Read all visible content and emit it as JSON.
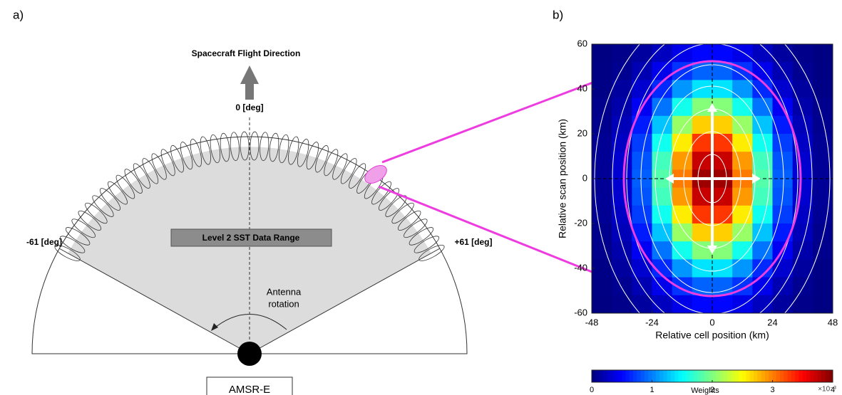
{
  "panel_a": {
    "label": "a)",
    "flight_direction": "Spacecraft Flight Direction",
    "zero": "0 [deg]",
    "left": "-61 [deg]",
    "right": "+61 [deg]",
    "range": "Level 2 SST Data Range",
    "rotation": [
      "Antenna",
      "rotation"
    ],
    "instrument": "AMSR-E"
  },
  "chart_data": {
    "type": "heatmap",
    "label": "b)",
    "x_label": "Relative cell position (km)",
    "y_label": "Relative scan position (km)",
    "x": [
      -44,
      -36,
      -28,
      -20,
      -12,
      -4,
      4,
      12,
      20,
      28,
      36,
      44
    ],
    "y": [
      56,
      48,
      40,
      32,
      24,
      16,
      8,
      0,
      -8,
      -16,
      -24,
      -32,
      -40,
      -48,
      -56
    ],
    "values": [
      [
        0.01,
        0.04,
        0.12,
        0.25,
        0.41,
        0.52,
        0.52,
        0.41,
        0.25,
        0.12,
        0.04,
        0.01
      ],
      [
        0.02,
        0.07,
        0.2,
        0.42,
        0.7,
        0.89,
        0.89,
        0.7,
        0.42,
        0.2,
        0.07,
        0.02
      ],
      [
        0.03,
        0.12,
        0.31,
        0.66,
        1.09,
        1.4,
        1.4,
        1.09,
        0.66,
        0.31,
        0.12,
        0.03
      ],
      [
        0.05,
        0.17,
        0.45,
        0.95,
        1.57,
        2.02,
        2.02,
        1.57,
        0.95,
        0.45,
        0.17,
        0.05
      ],
      [
        0.06,
        0.22,
        0.6,
        1.27,
        2.1,
        2.69,
        2.69,
        2.1,
        1.27,
        0.6,
        0.22,
        0.06
      ],
      [
        0.08,
        0.27,
        0.74,
        1.56,
        2.57,
        3.29,
        3.29,
        2.57,
        1.56,
        0.74,
        0.27,
        0.08
      ],
      [
        0.09,
        0.31,
        0.83,
        1.76,
        2.9,
        3.72,
        3.72,
        2.9,
        1.76,
        0.83,
        0.31,
        0.09
      ],
      [
        0.09,
        0.32,
        0.87,
        1.83,
        3.02,
        3.88,
        3.88,
        3.02,
        1.83,
        0.87,
        0.32,
        0.09
      ],
      [
        0.09,
        0.31,
        0.83,
        1.76,
        2.9,
        3.72,
        3.72,
        2.9,
        1.76,
        0.83,
        0.31,
        0.09
      ],
      [
        0.08,
        0.27,
        0.74,
        1.56,
        2.57,
        3.29,
        3.29,
        2.57,
        1.56,
        0.74,
        0.27,
        0.08
      ],
      [
        0.06,
        0.22,
        0.6,
        1.27,
        2.1,
        2.69,
        2.69,
        2.1,
        1.27,
        0.6,
        0.22,
        0.06
      ],
      [
        0.05,
        0.17,
        0.45,
        0.95,
        1.57,
        2.02,
        2.02,
        1.57,
        0.95,
        0.45,
        0.17,
        0.05
      ],
      [
        0.03,
        0.12,
        0.31,
        0.66,
        1.09,
        1.4,
        1.4,
        1.09,
        0.66,
        0.31,
        0.12,
        0.03
      ],
      [
        0.02,
        0.07,
        0.2,
        0.42,
        0.7,
        0.89,
        0.89,
        0.7,
        0.42,
        0.2,
        0.07,
        0.02
      ],
      [
        0.01,
        0.04,
        0.12,
        0.25,
        0.41,
        0.52,
        0.52,
        0.41,
        0.25,
        0.12,
        0.04,
        0.01
      ]
    ],
    "xlim": [
      -48,
      48
    ],
    "xticks": [
      -48,
      -24,
      0,
      24,
      48
    ],
    "ylim": [
      -60,
      60
    ],
    "yticks": [
      -60,
      -40,
      -20,
      0,
      20,
      40,
      60
    ],
    "colorbar": {
      "label": "Weights",
      "scale": "×10⁻³",
      "lim": [
        0,
        4
      ],
      "ticks": [
        0,
        1,
        2,
        3,
        4
      ]
    }
  }
}
